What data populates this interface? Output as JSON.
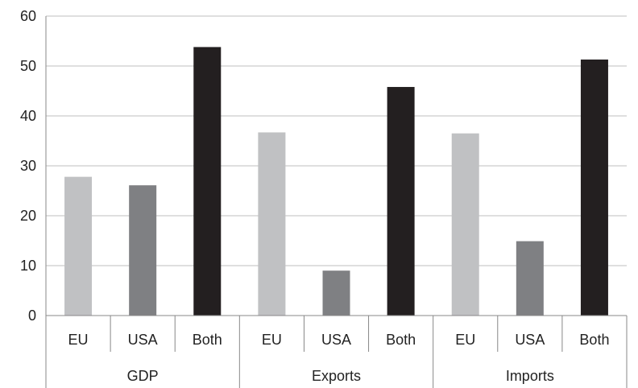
{
  "chart_data": {
    "type": "bar",
    "title": "",
    "xlabel": "",
    "ylabel": "",
    "ylim": [
      0,
      60
    ],
    "yticks": [
      0,
      10,
      20,
      30,
      40,
      50,
      60
    ],
    "grid": true,
    "legend": "none",
    "groups": [
      {
        "label": "GDP",
        "categories": [
          "EU",
          "USA",
          "Both"
        ],
        "values": [
          27.8,
          26.1,
          53.8
        ]
      },
      {
        "label": "Exports",
        "categories": [
          "EU",
          "USA",
          "Both"
        ],
        "values": [
          36.7,
          9.0,
          45.8
        ]
      },
      {
        "label": "Imports",
        "categories": [
          "EU",
          "USA",
          "Both"
        ],
        "values": [
          36.5,
          14.9,
          51.3
        ]
      }
    ],
    "colors": {
      "EU": "#c0c1c3",
      "USA": "#7f8083",
      "Both": "#231f20",
      "grid": "#bfbfbf",
      "axis": "#888888"
    }
  }
}
